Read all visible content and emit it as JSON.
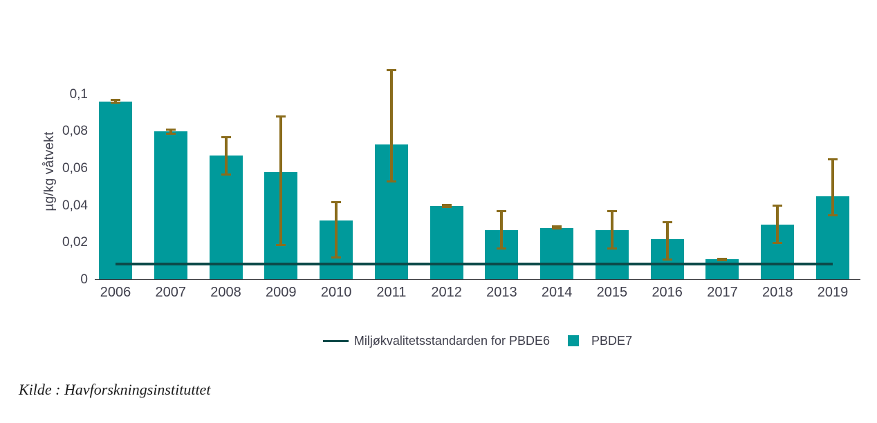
{
  "chart_data": {
    "type": "bar",
    "title": "",
    "ylabel": "µg/kg våtvekt",
    "xlabel": "",
    "ylim": [
      0,
      0.12
    ],
    "grid": false,
    "legend_position": "bottom",
    "categories": [
      "2006",
      "2007",
      "2008",
      "2009",
      "2010",
      "2011",
      "2012",
      "2013",
      "2014",
      "2015",
      "2016",
      "2017",
      "2018",
      "2019"
    ],
    "series": [
      {
        "name": "PBDE7",
        "values": [
          0.096,
          0.08,
          0.067,
          0.058,
          0.032,
          0.073,
          0.04,
          0.027,
          0.028,
          0.027,
          0.022,
          0.011,
          0.03,
          0.045
        ]
      }
    ],
    "error_bars": {
      "low": [
        0.0955,
        0.079,
        0.057,
        0.019,
        0.012,
        0.053,
        0.0395,
        0.017,
        0.0278,
        0.017,
        0.011,
        0.0105,
        0.02,
        0.035
      ],
      "high": [
        0.097,
        0.081,
        0.077,
        0.088,
        0.042,
        0.113,
        0.0405,
        0.037,
        0.0288,
        0.037,
        0.031,
        0.0113,
        0.04,
        0.065
      ]
    },
    "reference_line": {
      "label": "Miljøkvalitetsstandarden for PBDE6",
      "value": 0.0085
    },
    "yticks": {
      "values": [
        0,
        0.02,
        0.04,
        0.06,
        0.08,
        0.1
      ],
      "labels": [
        "0",
        "0,02",
        "0,04",
        "0,06",
        "0,08",
        "0,1"
      ]
    }
  },
  "source": {
    "text": "Kilde : Havforskningsinstituttet"
  },
  "colors": {
    "bar": "#009a9b",
    "error_bar": "#8a6c1c",
    "reference_line": "#0d4a49",
    "axis_line": "#3a3a3e",
    "tick_text": "#3f3f4c"
  }
}
